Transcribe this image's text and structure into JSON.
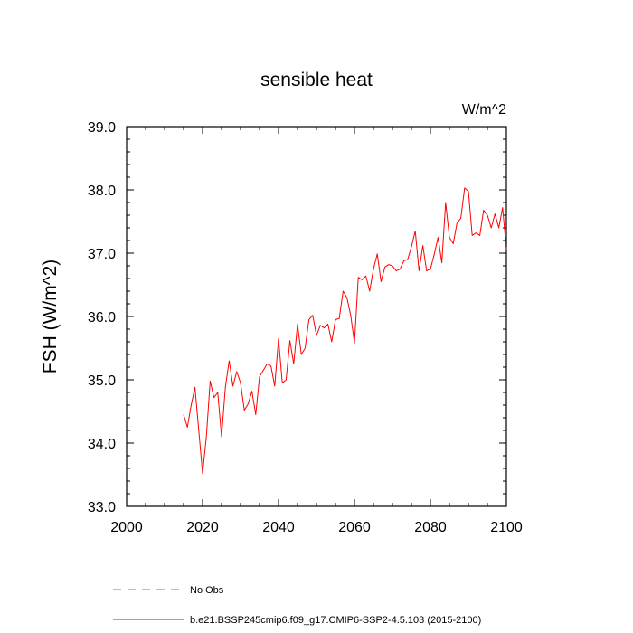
{
  "chart_data": {
    "type": "line",
    "title": "sensible heat",
    "units_label": "W/m^2",
    "ylabel": "FSH  (W/m^2)",
    "xlabel": "",
    "xlim": [
      2000,
      2100
    ],
    "ylim": [
      33.0,
      39.0
    ],
    "x_ticks": [
      2000,
      2020,
      2040,
      2060,
      2080,
      2100
    ],
    "y_ticks": [
      "33.0",
      "34.0",
      "35.0",
      "36.0",
      "37.0",
      "38.0",
      "39.0"
    ],
    "grid": false,
    "legend_placement": "bottom",
    "series": [
      {
        "name": "No Obs",
        "color": "#6f6fe6",
        "style": "dashed",
        "x": [],
        "y": []
      },
      {
        "name": "b.e21.BSSP245cmip6.f09_g17.CMIP6-SSP2-4.5.103 (2015-2100)",
        "color": "#ff0000",
        "style": "solid",
        "x": [
          2015,
          2016,
          2017,
          2018,
          2019,
          2020,
          2021,
          2022,
          2023,
          2024,
          2025,
          2026,
          2027,
          2028,
          2029,
          2030,
          2031,
          2032,
          2033,
          2034,
          2035,
          2036,
          2037,
          2038,
          2039,
          2040,
          2041,
          2042,
          2043,
          2044,
          2045,
          2046,
          2047,
          2048,
          2049,
          2050,
          2051,
          2052,
          2053,
          2054,
          2055,
          2056,
          2057,
          2058,
          2059,
          2060,
          2061,
          2062,
          2063,
          2064,
          2065,
          2066,
          2067,
          2068,
          2069,
          2070,
          2071,
          2072,
          2073,
          2074,
          2075,
          2076,
          2077,
          2078,
          2079,
          2080,
          2081,
          2082,
          2083,
          2084,
          2085,
          2086,
          2087,
          2088,
          2089,
          2090,
          2091,
          2092,
          2093,
          2094,
          2095,
          2096,
          2097,
          2098,
          2099,
          2100
        ],
        "y": [
          34.45,
          34.25,
          34.6,
          34.88,
          34.2,
          33.52,
          34.1,
          34.98,
          34.72,
          34.8,
          34.1,
          34.88,
          35.3,
          34.9,
          35.13,
          34.95,
          34.52,
          34.62,
          34.82,
          34.45,
          35.05,
          35.15,
          35.25,
          35.22,
          34.9,
          35.65,
          34.95,
          35.0,
          35.62,
          35.25,
          35.88,
          35.4,
          35.5,
          35.95,
          36.02,
          35.7,
          35.86,
          35.82,
          35.88,
          35.6,
          35.95,
          35.97,
          36.4,
          36.3,
          36.02,
          35.58,
          36.62,
          36.58,
          36.64,
          36.4,
          36.75,
          36.99,
          36.55,
          36.78,
          36.82,
          36.8,
          36.72,
          36.75,
          36.88,
          36.9,
          37.1,
          37.35,
          36.72,
          37.12,
          36.72,
          36.75,
          36.98,
          37.25,
          36.85,
          37.8,
          37.25,
          37.15,
          37.48,
          37.55,
          38.03,
          37.98,
          37.28,
          37.32,
          37.28,
          37.68,
          37.6,
          37.4,
          37.62,
          37.4,
          37.72,
          37.05
        ]
      }
    ]
  }
}
